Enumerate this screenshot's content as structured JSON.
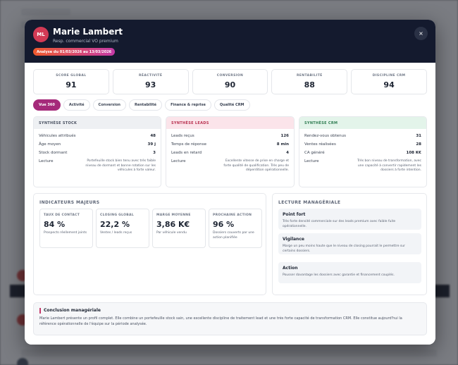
{
  "header": {
    "initials": "ML",
    "name": "Marie Lambert",
    "role": "Resp. commercial VO premium",
    "period": "Analyse du 01/03/2026 au 13/03/2026",
    "close_icon": "×"
  },
  "kpis": [
    {
      "label": "SCORE GLOBAL",
      "value": "91"
    },
    {
      "label": "RÉACTIVITÉ",
      "value": "93"
    },
    {
      "label": "CONVERSION",
      "value": "90"
    },
    {
      "label": "RENTABILITÉ",
      "value": "88"
    },
    {
      "label": "DISCIPLINE CRM",
      "value": "94"
    }
  ],
  "tabs": [
    "Vue 360",
    "Activité",
    "Conversion",
    "Rentabilité",
    "Finance & reprise",
    "Qualité CRM"
  ],
  "syntheses": [
    {
      "title": "SYNTHÈSE STOCK",
      "rows": [
        {
          "label": "Véhicules attribués",
          "value": "48"
        },
        {
          "label": "Âge moyen",
          "value": "39 j"
        },
        {
          "label": "Stock dormant",
          "value": "3"
        }
      ],
      "lecture_label": "Lecture",
      "lecture": "Portefeuille stock bien tenu avec très faible niveau de dormant et bonne rotation sur les véhicules à forte valeur."
    },
    {
      "title": "SYNTHÈSE LEADS",
      "rows": [
        {
          "label": "Leads reçus",
          "value": "126"
        },
        {
          "label": "Temps de réponse",
          "value": "8 min"
        },
        {
          "label": "Leads en retard",
          "value": "4"
        }
      ],
      "lecture_label": "Lecture",
      "lecture": "Excellente vitesse de prise en charge et forte qualité de qualification. Très peu de déperdition opérationnelle."
    },
    {
      "title": "SYNTHÈSE CRM",
      "rows": [
        {
          "label": "Rendez-vous obtenus",
          "value": "31"
        },
        {
          "label": "Ventes réalisées",
          "value": "28"
        },
        {
          "label": "CA généré",
          "value": "108 K€"
        }
      ],
      "lecture_label": "Lecture",
      "lecture": "Très bon niveau de transformation, avec une capacité à convertir rapidement les dossiers à forte intention."
    }
  ],
  "indicateurs": {
    "title": "INDICATEURS MAJEURS",
    "cards": [
      {
        "label": "TAUX DE CONTACT",
        "value": "84 %",
        "sub": "Prospects réellement joints"
      },
      {
        "label": "CLOSING GLOBAL",
        "value": "22,2 %",
        "sub": "Ventes / leads reçus"
      },
      {
        "label": "MARGE MOYENNE",
        "value": "3,86 K€",
        "sub": "Par véhicule vendu"
      },
      {
        "label": "PROCHAINE ACTION",
        "value": "96 %",
        "sub": "Dossiers couverts par une action planifiée"
      }
    ]
  },
  "lecture_manageriale": {
    "title": "LECTURE MANAGÉRIALE",
    "items": [
      {
        "title": "Point fort",
        "text": "Très forte densité commerciale sur des leads premium avec faible fuite opérationnelle."
      },
      {
        "title": "Vigilance",
        "text": "Marge un peu moins haute que le niveau de closing pourrait le permettre sur certains dossiers."
      },
      {
        "title": "Action",
        "text": "Pousser davantage les dossiers avec garantie et financement couplés."
      }
    ]
  },
  "conclusion": {
    "title": "Conclusion managériale",
    "text": "Marie Lambert présente un profil complet. Elle combine un portefeuille stock sain, une excellente discipline de traitement lead et une très forte capacité de transformation CRM. Elle constitue aujourd'hui la référence opérationnelle de l'équipe sur la période analysée."
  },
  "colors": {
    "header_bg": "#141a2e",
    "avatar": "#d23a55",
    "active_tab": "#a52a7a",
    "stock_head": "#eef0f3",
    "leads_head": "#fbe4ea",
    "crm_head": "#e3f4ea"
  }
}
